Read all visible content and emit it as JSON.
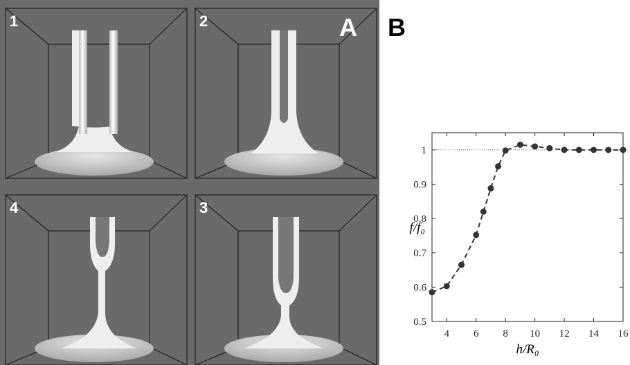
{
  "figure": {
    "panel_a_label": "A",
    "panel_b_label": "B",
    "subpanel_labels": [
      "1",
      "2",
      "4",
      "3"
    ]
  },
  "chart_data": {
    "type": "line",
    "xlabel": "h/R₀",
    "ylabel": "f/f₀",
    "x": [
      3,
      4,
      5,
      6,
      6.5,
      7,
      7.5,
      8,
      9,
      10,
      11,
      12,
      13,
      14,
      15,
      16
    ],
    "values": [
      0.585,
      0.603,
      0.665,
      0.752,
      0.82,
      0.888,
      0.952,
      0.998,
      1.015,
      1.01,
      1.005,
      1.0,
      1.0,
      1.0,
      1.0,
      1.0
    ],
    "color": "#333333",
    "reference_line": 1,
    "xlim": [
      3,
      16
    ],
    "xticks": [
      4,
      6,
      8,
      10,
      12,
      14,
      16
    ],
    "ylim": [
      0.5,
      1.05
    ],
    "yticks": [
      0.5,
      0.6,
      0.7,
      0.8,
      0.9,
      1
    ]
  }
}
